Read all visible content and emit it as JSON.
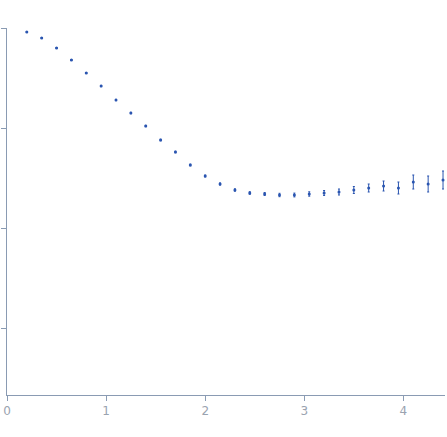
{
  "chart_data": {
    "type": "scatter",
    "x": [
      0.2,
      0.35,
      0.5,
      0.65,
      0.8,
      0.95,
      1.1,
      1.25,
      1.4,
      1.55,
      1.7,
      1.85,
      2.0,
      2.15,
      2.3,
      2.45,
      2.6,
      2.75,
      2.9,
      3.05,
      3.2,
      3.35,
      3.5,
      3.65,
      3.8,
      3.95,
      4.1,
      4.25,
      4.4
    ],
    "values": [
      2.96,
      2.9,
      2.8,
      2.68,
      2.55,
      2.42,
      2.28,
      2.15,
      2.02,
      1.88,
      1.76,
      1.63,
      1.52,
      1.44,
      1.38,
      1.35,
      1.34,
      1.33,
      1.33,
      1.34,
      1.35,
      1.36,
      1.38,
      1.4,
      1.42,
      1.4,
      1.46,
      1.44,
      1.48
    ],
    "errors": [
      0.005,
      0.005,
      0.005,
      0.005,
      0.005,
      0.006,
      0.006,
      0.007,
      0.007,
      0.008,
      0.008,
      0.009,
      0.01,
      0.011,
      0.012,
      0.013,
      0.015,
      0.017,
      0.019,
      0.022,
      0.025,
      0.03,
      0.035,
      0.04,
      0.05,
      0.06,
      0.07,
      0.08,
      0.09
    ],
    "color": "#2a55b0",
    "marker": "circle",
    "xlim": [
      0,
      4.42
    ],
    "xticks": [
      0,
      1,
      2,
      3,
      4
    ],
    "ylim": [
      -0.67,
      3
    ],
    "yticks": [
      0,
      1,
      2,
      3
    ],
    "tick_labels": "x",
    "grid": false
  }
}
